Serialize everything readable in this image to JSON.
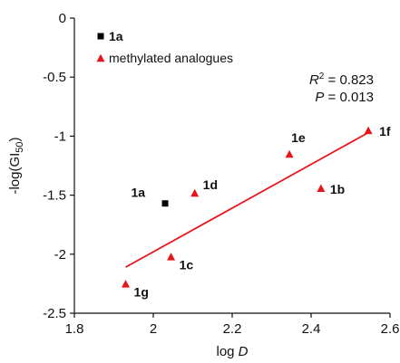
{
  "chart_data": {
    "type": "scatter",
    "xlabel_prefix": "log ",
    "xlabel_var": "D",
    "ylabel_prefix": "-log(GI",
    "ylabel_sub": "50",
    "ylabel_suffix": ")",
    "xlim": [
      1.8,
      2.6
    ],
    "ylim": [
      -2.5,
      0
    ],
    "xticks": [
      1.8,
      2.0,
      2.2,
      2.4,
      2.6
    ],
    "xtick_labels": [
      "1.8",
      "2",
      "2.2",
      "2.4",
      "2.6"
    ],
    "yticks": [
      0,
      -0.5,
      -1.0,
      -1.5,
      -2.0,
      -2.5
    ],
    "ytick_labels": [
      "0",
      "-0.5",
      "-1",
      "-1.5",
      "-2",
      "-2.5"
    ],
    "grid": false,
    "legend": {
      "position": "top-left",
      "entries": [
        {
          "label": "1a",
          "marker": "square",
          "color": "#000000",
          "bold": true
        },
        {
          "label": "methylated analogues",
          "marker": "triangle",
          "color": "#e8141b",
          "bold": false
        }
      ]
    },
    "series": [
      {
        "name": "1a",
        "marker": "square",
        "color": "#000000",
        "points": [
          {
            "x": 2.03,
            "y": -1.57,
            "label": "1a"
          }
        ]
      },
      {
        "name": "methylated analogues",
        "marker": "triangle",
        "color": "#e8141b",
        "points": [
          {
            "x": 1.93,
            "y": -2.25,
            "label": "1g"
          },
          {
            "x": 2.045,
            "y": -2.02,
            "label": "1c"
          },
          {
            "x": 2.105,
            "y": -1.48,
            "label": "1d"
          },
          {
            "x": 2.345,
            "y": -1.15,
            "label": "1e"
          },
          {
            "x": 2.425,
            "y": -1.44,
            "label": "1b"
          },
          {
            "x": 2.545,
            "y": -0.95,
            "label": "1f"
          }
        ]
      }
    ],
    "trendline": {
      "color": "#e8141b",
      "x": [
        1.93,
        2.545
      ],
      "y": [
        -2.11,
        -0.97
      ]
    },
    "stats": {
      "r2_var": "R",
      "r2_sup": "2",
      "r2_value": " = 0.823",
      "p_var": "P",
      "p_value": " = 0.013"
    }
  }
}
